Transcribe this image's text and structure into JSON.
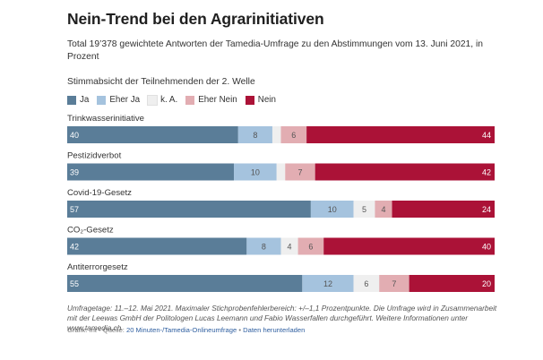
{
  "title": "Nein-Trend bei den Agrarinitiativen",
  "subtitle": "Total 19’378 gewichtete Antworten der Tamedia-Umfrage zu den Abstimmungen vom 13. Juni 2021, in Prozent",
  "section_label": "Stimmabsicht der Teilnehmenden der 2. Welle",
  "colors": {
    "ja": "#5a7d98",
    "eher_ja": "#a5c3de",
    "ka": "#efefef",
    "eher_nein": "#e2adb2",
    "nein": "#ab1237"
  },
  "legend": [
    {
      "label": "Ja",
      "color": "#5a7d98"
    },
    {
      "label": "Eher Ja",
      "color": "#a5c3de"
    },
    {
      "label": "k. A.",
      "color": "#efefef"
    },
    {
      "label": "Eher Nein",
      "color": "#e2adb2"
    },
    {
      "label": "Nein",
      "color": "#ab1237"
    }
  ],
  "chart_data": {
    "type": "bar",
    "orientation": "horizontal",
    "stacked": true,
    "title": "Nein-Trend bei den Agrarinitiativen",
    "xlim": [
      0,
      100
    ],
    "categories": [
      "Trinkwasserinitiative",
      "Pestizidverbot",
      "Covid-19-Gesetz",
      "CO₂-Gesetz",
      "Antiterrorgesetz"
    ],
    "series": [
      {
        "name": "Ja",
        "values": [
          40,
          39,
          57,
          42,
          55
        ]
      },
      {
        "name": "Eher Ja",
        "values": [
          8,
          10,
          10,
          8,
          12
        ]
      },
      {
        "name": "k. A.",
        "values": [
          2,
          2,
          5,
          4,
          6
        ]
      },
      {
        "name": "Eher Nein",
        "values": [
          6,
          7,
          4,
          6,
          7
        ]
      },
      {
        "name": "Nein",
        "values": [
          44,
          42,
          24,
          40,
          20
        ]
      }
    ],
    "labels": [
      [
        "40",
        "8",
        "",
        "6",
        "44"
      ],
      [
        "39",
        "10",
        "",
        "7",
        "42"
      ],
      [
        "57",
        "10",
        "5",
        "4",
        "24"
      ],
      [
        "42",
        "8",
        "4",
        "6",
        "40"
      ],
      [
        "55",
        "12",
        "6",
        "7",
        "20"
      ]
    ]
  },
  "footnote": "Umfragetage: 11.–12. Mai 2021. Maximaler Stichprobenfehlerbereich: +/–1,1 Prozentpunkte. Die Umfrage wird in Zusammenarbeit mit der Leewas GmbH der Politologen Lucas Leemann und Fabio Wasserfallen durchgeführt. Weitere Informationen unter www.tamedia.ch.",
  "source": {
    "prefix": "Grafik: mt • Quelle: ",
    "source_link": "20 Minuten-/Tamedia-Onlineumfrage",
    "separator": " • ",
    "download_link": "Daten herunterladen"
  }
}
